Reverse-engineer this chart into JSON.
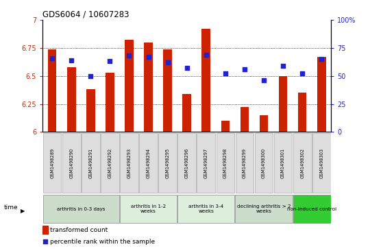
{
  "title": "GDS6064 / 10607283",
  "samples": [
    "GSM1498289",
    "GSM1498290",
    "GSM1498291",
    "GSM1498292",
    "GSM1498293",
    "GSM1498294",
    "GSM1498295",
    "GSM1498296",
    "GSM1498297",
    "GSM1498298",
    "GSM1498299",
    "GSM1498300",
    "GSM1498301",
    "GSM1498302",
    "GSM1498303"
  ],
  "bar_values": [
    6.74,
    6.58,
    6.38,
    6.53,
    6.82,
    6.8,
    6.74,
    6.34,
    6.92,
    6.1,
    6.22,
    6.15,
    6.5,
    6.35,
    6.67
  ],
  "dot_values": [
    66,
    64,
    50,
    63,
    68,
    67,
    62,
    57,
    69,
    52,
    56,
    46,
    59,
    52,
    65
  ],
  "ylim_left": [
    6.0,
    7.0
  ],
  "ylim_right": [
    0,
    100
  ],
  "yticks_left": [
    6.0,
    6.25,
    6.5,
    6.75,
    7.0
  ],
  "yticks_right": [
    0,
    25,
    50,
    75,
    100
  ],
  "bar_color": "#cc2200",
  "dot_color": "#2222cc",
  "bar_width": 0.45,
  "groups": [
    {
      "label": "arthritis in 0-3 days",
      "start": 0,
      "end": 4,
      "color": "#ccddcc"
    },
    {
      "label": "arthritis in 1-2\nweeks",
      "start": 4,
      "end": 7,
      "color": "#ddeedd"
    },
    {
      "label": "arthritis in 3-4\nweeks",
      "start": 7,
      "end": 10,
      "color": "#ddeedd"
    },
    {
      "label": "declining arthritis > 2\nweeks",
      "start": 10,
      "end": 13,
      "color": "#ccddcc"
    },
    {
      "label": "non-induced control",
      "start": 13,
      "end": 15,
      "color": "#33cc33"
    }
  ],
  "legend_bar_label": "transformed count",
  "legend_dot_label": "percentile rank within the sample",
  "tick_color_left": "#cc2200",
  "tick_color_right": "#2222cc",
  "grid_yticks": [
    6.25,
    6.5,
    6.75
  ]
}
